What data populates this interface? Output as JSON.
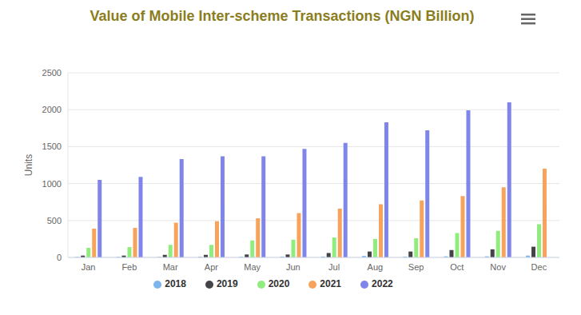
{
  "chart_data": {
    "type": "bar",
    "title": "Value of Mobile Inter-scheme Transactions (NGN Billion)",
    "y_label": "Units",
    "categories": [
      "Jan",
      "Feb",
      "Mar",
      "Apr",
      "May",
      "Jun",
      "Jul",
      "Aug",
      "Sep",
      "Oct",
      "Nov",
      "Dec"
    ],
    "series": [
      {
        "name": "2018",
        "color": "#7cb5ec",
        "values": [
          8,
          8,
          8,
          10,
          10,
          12,
          12,
          20,
          12,
          15,
          15,
          25
        ]
      },
      {
        "name": "2019",
        "color": "#434348",
        "values": [
          25,
          25,
          35,
          35,
          40,
          40,
          60,
          80,
          80,
          100,
          110,
          145
        ]
      },
      {
        "name": "2020",
        "color": "#90ed7d",
        "values": [
          130,
          140,
          170,
          170,
          230,
          240,
          270,
          250,
          260,
          330,
          360,
          450
        ]
      },
      {
        "name": "2021",
        "color": "#f7a35c",
        "values": [
          390,
          400,
          470,
          490,
          530,
          600,
          660,
          720,
          770,
          830,
          950,
          1200
        ]
      },
      {
        "name": "2022",
        "color": "#8085e9",
        "values": [
          1050,
          1090,
          1330,
          1370,
          1370,
          1470,
          1550,
          1830,
          1720,
          1990,
          2100,
          null
        ]
      }
    ],
    "ylim": [
      0,
      2500
    ],
    "yticks": [
      0,
      500,
      1000,
      1500,
      2000,
      2500
    ],
    "grid": true,
    "legend": "bottom"
  }
}
